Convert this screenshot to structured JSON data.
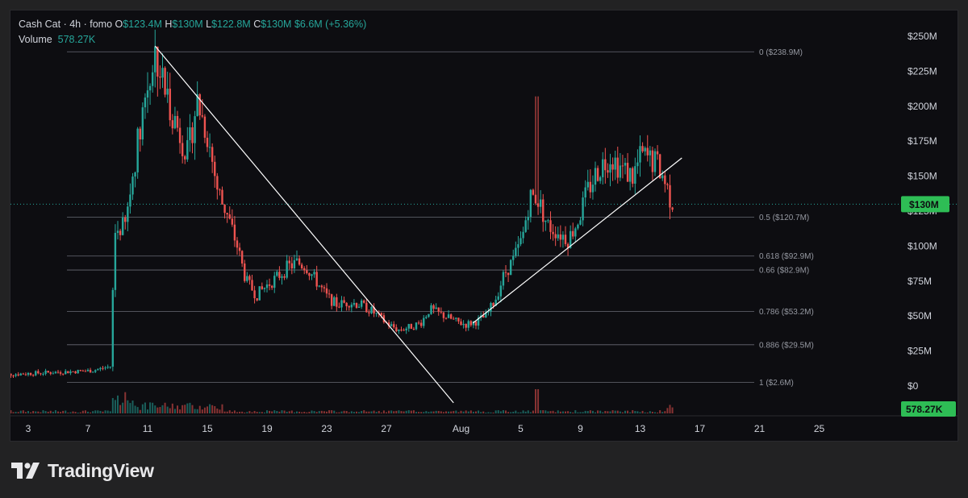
{
  "legend": {
    "symbol": "Cash Cat · 4h · fomo",
    "open_label": "O",
    "open_value": "$123.4M",
    "high_label": "H",
    "high_value": "$130M",
    "low_label": "L",
    "low_value": "$122.8M",
    "close_label": "C",
    "close_value": "$130M",
    "change": "$6.6M (+5.36%)",
    "volume_label": "Volume",
    "volume_value": "578.27K"
  },
  "brand": {
    "name": "TradingView",
    "icon": "tradingview-logo-icon"
  },
  "colors": {
    "up": "#26a69a",
    "down": "#ef5350",
    "background": "#0d0d11",
    "fib": "#787b86",
    "trendline": "#ffffff",
    "price_tag": "#2ebd55"
  },
  "chart_data": {
    "type": "candlestick",
    "title": "Cash Cat · 4h · fomo",
    "ylabel": "",
    "xlabel": "",
    "ylim": [
      -20,
      260
    ],
    "y_ticks": [
      {
        "label": "$250M",
        "value": 250
      },
      {
        "label": "$225M",
        "value": 225
      },
      {
        "label": "$200M",
        "value": 200
      },
      {
        "label": "$175M",
        "value": 175
      },
      {
        "label": "$150M",
        "value": 150
      },
      {
        "label": "$125M",
        "value": 125
      },
      {
        "label": "$100M",
        "value": 100
      },
      {
        "label": "$75M",
        "value": 75
      },
      {
        "label": "$50M",
        "value": 50
      },
      {
        "label": "$25M",
        "value": 25
      },
      {
        "label": "$0",
        "value": 0
      }
    ],
    "x_ticks": [
      {
        "label": "3",
        "day": 3
      },
      {
        "label": "7",
        "day": 7
      },
      {
        "label": "11",
        "day": 11
      },
      {
        "label": "15",
        "day": 15
      },
      {
        "label": "19",
        "day": 19
      },
      {
        "label": "23",
        "day": 23
      },
      {
        "label": "27",
        "day": 27
      },
      {
        "label": "Aug",
        "day": 32
      },
      {
        "label": "5",
        "day": 36
      },
      {
        "label": "9",
        "day": 40
      },
      {
        "label": "13",
        "day": 44
      },
      {
        "label": "17",
        "day": 48
      },
      {
        "label": "21",
        "day": 52
      },
      {
        "label": "25",
        "day": 56
      }
    ],
    "fib_levels": [
      {
        "label": "0 ($238.9M)",
        "value": 238.9
      },
      {
        "label": "0.5 ($120.7M)",
        "value": 120.7
      },
      {
        "label": "0.618 ($92.9M)",
        "value": 92.9
      },
      {
        "label": "0.66 ($82.9M)",
        "value": 82.9
      },
      {
        "label": "0.786 ($53.2M)",
        "value": 53.2
      },
      {
        "label": "0.886 ($29.5M)",
        "value": 29.5
      },
      {
        "label": "1 ($2.6M)",
        "value": 2.6
      }
    ],
    "current_price": {
      "label": "$130M",
      "value": 130
    },
    "volume_tag": "578.27K",
    "trendlines": [
      {
        "name": "descending",
        "from": {
          "day": 11.5,
          "price": 243
        },
        "to": {
          "day": 31.5,
          "price": -12
        }
      },
      {
        "name": "ascending",
        "from": {
          "day": 32.8,
          "price": 45
        },
        "to": {
          "day": 46.8,
          "price": 163
        }
      }
    ],
    "price_path": [
      [
        1,
        6,
        8,
        4,
        9
      ],
      [
        7.3,
        8,
        11,
        6,
        14
      ],
      [
        8.5,
        10,
        14,
        7,
        20
      ],
      [
        8.8,
        80,
        110,
        60,
        140
      ],
      [
        9.5,
        100,
        115,
        90,
        130
      ],
      [
        10,
        140,
        150,
        120,
        165
      ],
      [
        10.6,
        185,
        195,
        160,
        210
      ],
      [
        11.5,
        225,
        239,
        205,
        239
      ],
      [
        12.2,
        190,
        210,
        165,
        225
      ],
      [
        13,
        175,
        185,
        150,
        200
      ],
      [
        13.7,
        150,
        165,
        140,
        175
      ],
      [
        14.3,
        195,
        205,
        170,
        215
      ],
      [
        15,
        170,
        180,
        150,
        190
      ],
      [
        15.7,
        125,
        140,
        110,
        150
      ],
      [
        16.4,
        105,
        120,
        90,
        130
      ],
      [
        17,
        90,
        100,
        75,
        110
      ],
      [
        17.6,
        62,
        75,
        45,
        85
      ],
      [
        18.3,
        55,
        65,
        45,
        72
      ],
      [
        19,
        65,
        72,
        58,
        78
      ],
      [
        19.7,
        70,
        78,
        62,
        82
      ],
      [
        20.4,
        78,
        85,
        70,
        88
      ],
      [
        21,
        82,
        88,
        76,
        92
      ],
      [
        21.6,
        80,
        86,
        74,
        90
      ],
      [
        22.3,
        68,
        75,
        62,
        80
      ],
      [
        23,
        58,
        64,
        52,
        68
      ],
      [
        23.7,
        52,
        58,
        46,
        62
      ],
      [
        24.5,
        55,
        60,
        50,
        63
      ],
      [
        25.3,
        54,
        58,
        49,
        61
      ],
      [
        26.1,
        48,
        53,
        44,
        57
      ],
      [
        27,
        40,
        45,
        36,
        48
      ],
      [
        27.8,
        36,
        40,
        33,
        44
      ],
      [
        28.5,
        38,
        42,
        33,
        46
      ],
      [
        29.3,
        40,
        45,
        35,
        48
      ],
      [
        29.9,
        48,
        55,
        42,
        62
      ],
      [
        30.5,
        46,
        52,
        40,
        56
      ],
      [
        31.1,
        44,
        49,
        40,
        52
      ],
      [
        31.7,
        42,
        46,
        38,
        50
      ],
      [
        32.3,
        40,
        44,
        36,
        47
      ],
      [
        33,
        42,
        46,
        38,
        49
      ],
      [
        33.7,
        46,
        50,
        42,
        53
      ],
      [
        34.3,
        55,
        62,
        48,
        68
      ],
      [
        34.9,
        70,
        80,
        62,
        88
      ],
      [
        35.5,
        80,
        90,
        72,
        95
      ],
      [
        36.1,
        95,
        105,
        85,
        112
      ],
      [
        36.6,
        120,
        135,
        105,
        140
      ],
      [
        37.1,
        118,
        135,
        100,
        207
      ],
      [
        37.8,
        105,
        115,
        95,
        125
      ],
      [
        38.5,
        100,
        110,
        92,
        118
      ],
      [
        39.2,
        95,
        105,
        88,
        112
      ],
      [
        39.9,
        110,
        120,
        98,
        130
      ],
      [
        40.5,
        130,
        140,
        115,
        145
      ],
      [
        41.2,
        145,
        155,
        135,
        170
      ],
      [
        42,
        155,
        165,
        145,
        175
      ],
      [
        42.8,
        148,
        155,
        138,
        165
      ],
      [
        43.5,
        140,
        150,
        135,
        160
      ],
      [
        44.1,
        155,
        165,
        145,
        170
      ],
      [
        44.6,
        155,
        162,
        148,
        168
      ],
      [
        45.2,
        150,
        158,
        140,
        165
      ],
      [
        45.7,
        138,
        145,
        130,
        150
      ],
      [
        46.1,
        125,
        132,
        120,
        138
      ],
      [
        46.3,
        123.4,
        130,
        122.8,
        130
      ]
    ]
  }
}
